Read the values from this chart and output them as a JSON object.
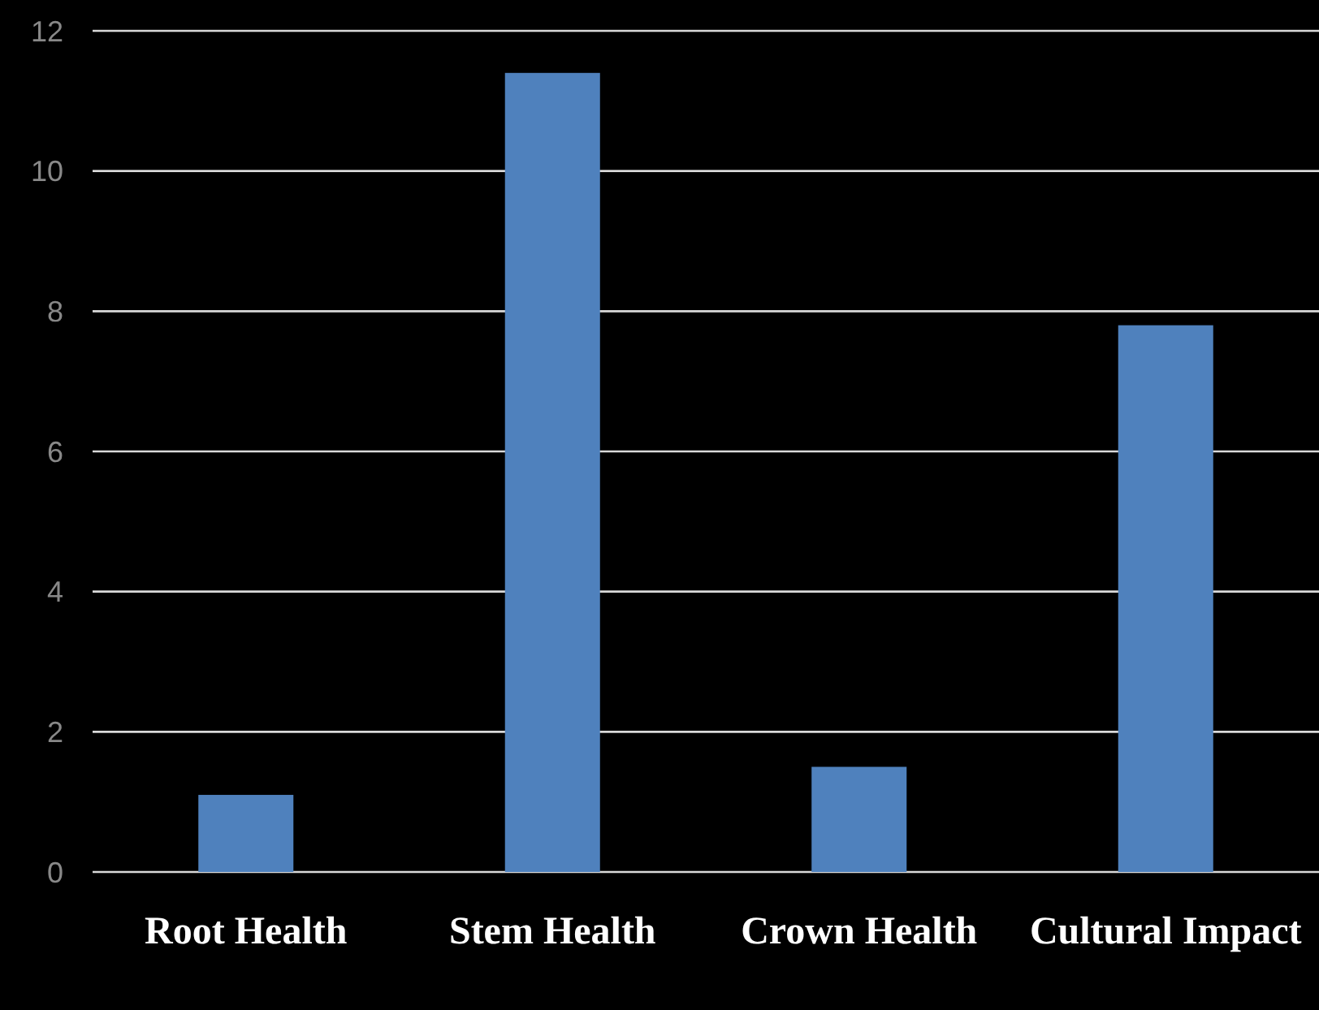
{
  "chart_data": {
    "type": "bar",
    "categories": [
      "Root Health",
      "Stem Health",
      "Crown Health",
      "Cultural Impact"
    ],
    "values": [
      1.1,
      11.4,
      1.5,
      7.8
    ],
    "color": "#4f81bd",
    "ylim": [
      0,
      12
    ],
    "yticks": [
      0,
      2,
      4,
      6,
      8,
      10,
      12
    ],
    "grid": "y"
  }
}
